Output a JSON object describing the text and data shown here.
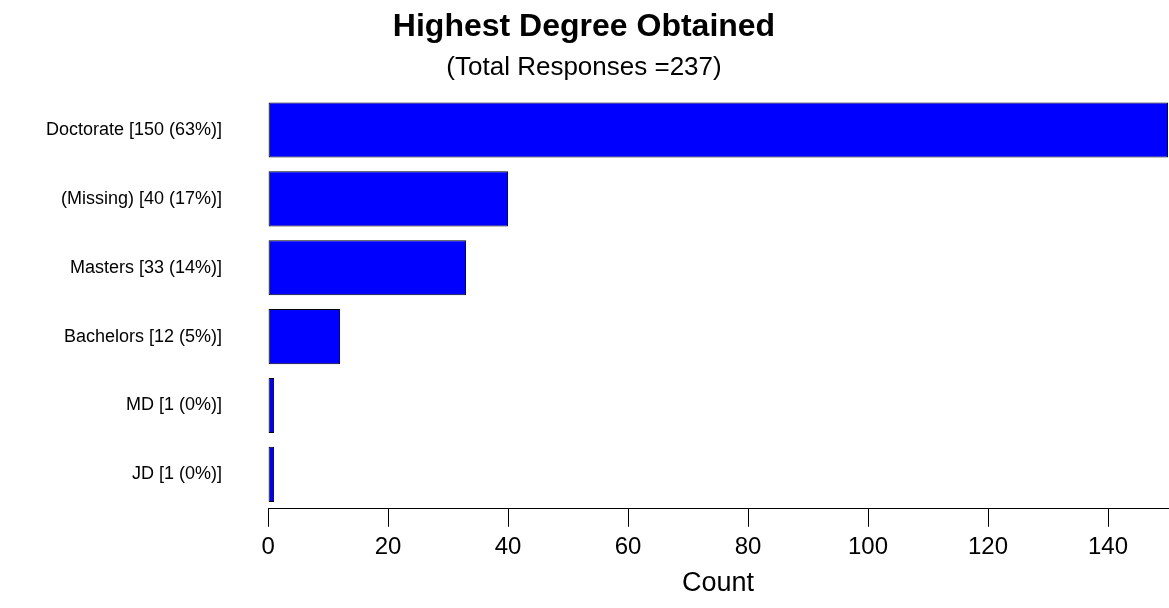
{
  "chart_data": {
    "type": "bar",
    "orientation": "horizontal",
    "title": "Highest Degree Obtained",
    "subtitle": "(Total Responses =237)",
    "xlabel": "Count",
    "categories": [
      "Doctorate [150 (63%)]",
      "(Missing) [40 (17%)]",
      "Masters [33 (14%)]",
      "Bachelors [12 (5%)]",
      "MD [1 (0%)]",
      "JD [1 (0%)]"
    ],
    "values": [
      150,
      40,
      33,
      12,
      1,
      1
    ],
    "color": "#0000ff",
    "xlim": [
      0,
      150
    ],
    "xticks": [
      0,
      20,
      40,
      60,
      80,
      100,
      120,
      140
    ],
    "grid": false,
    "legend": false
  }
}
